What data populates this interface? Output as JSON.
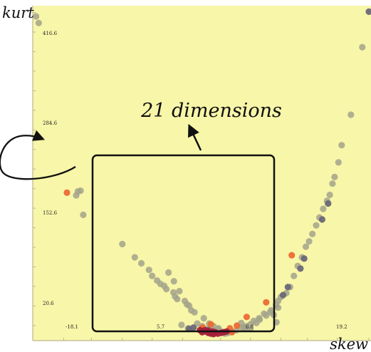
{
  "chart_data": {
    "type": "scatter",
    "title": "",
    "xlabel": "skew",
    "ylabel": "kurt",
    "x_tick_labels": [
      "-18.1",
      "5.7",
      "6.8",
      "19.2"
    ],
    "y_tick_labels": [
      "416.6",
      "284.6",
      "152.6",
      "20.6"
    ],
    "xlim": [
      -28.9,
      33.4
    ],
    "ylim": [
      0,
      445
    ],
    "grid": false,
    "legend": "none",
    "annotation": "21 dimensions",
    "colors": {
      "background": "#f8f6a8",
      "axis": "#b9b792",
      "gray": "#a3a38c",
      "dark": "#6b6878",
      "orange": "#ec6a35",
      "crimson": "#a3203a"
    },
    "series": [
      {
        "color_key": "gray",
        "points": [
          [
            -28.3,
            430.8
          ],
          [
            -27.8,
            422.0
          ],
          [
            -20.9,
            193.0
          ],
          [
            -20.6,
            198.3
          ],
          [
            -20.1,
            199.2
          ],
          [
            -19.6,
            167.1
          ],
          [
            -12.4,
            128.3
          ],
          [
            -10.1,
            110.7
          ],
          [
            -8.9,
            102.7
          ],
          [
            -7.5,
            93.9
          ],
          [
            -6.9,
            86.0
          ],
          [
            -6.0,
            79.8
          ],
          [
            -5.4,
            75.4
          ],
          [
            -4.7,
            72.8
          ],
          [
            -4.3,
            68.4
          ],
          [
            -3.0,
            64.0
          ],
          [
            -2.7,
            58.7
          ],
          [
            -2.3,
            55.2
          ],
          [
            -0.9,
            52.6
          ],
          [
            -0.5,
            48.2
          ],
          [
            -0.1,
            46.4
          ],
          [
            -3.9,
            90.4
          ],
          [
            -2.9,
            78.9
          ],
          [
            -1.9,
            65.7
          ],
          [
            0.3,
            40.2
          ],
          [
            0.9,
            37.6
          ],
          [
            2.6,
            29.7
          ],
          [
            3.6,
            22.6
          ],
          [
            4.4,
            19.1
          ],
          [
            5.2,
            14.7
          ],
          [
            5.6,
            12.9
          ],
          [
            6.1,
            11.2
          ],
          [
            6.5,
            9.4
          ],
          [
            7.1,
            10.3
          ],
          [
            7.8,
            12.0
          ],
          [
            8.6,
            13.8
          ],
          [
            9.6,
            17.3
          ],
          [
            10.0,
            18.2
          ],
          [
            10.4,
            19.1
          ],
          [
            11.2,
            21.7
          ],
          [
            11.8,
            26.1
          ],
          [
            12.8,
            29.7
          ],
          [
            13.7,
            35.8
          ],
          [
            15.0,
            40.2
          ],
          [
            15.9,
            47.3
          ],
          [
            16.3,
            52.6
          ],
          [
            16.8,
            57.9
          ],
          [
            17.8,
            63.1
          ],
          [
            18.5,
            71.1
          ],
          [
            19.2,
            86.0
          ],
          [
            19.9,
            99.2
          ],
          [
            20.7,
            110.7
          ],
          [
            21.4,
            124.8
          ],
          [
            22.0,
            131.9
          ],
          [
            22.6,
            141.6
          ],
          [
            23.3,
            153.1
          ],
          [
            23.9,
            163.6
          ],
          [
            24.6,
            175.1
          ],
          [
            25.3,
            185.7
          ],
          [
            25.8,
            193.6
          ],
          [
            26.3,
            208.6
          ],
          [
            26.7,
            217.4
          ],
          [
            27.4,
            236.8
          ],
          [
            28.0,
            259.7
          ],
          [
            29.7,
            300.1
          ],
          [
            31.8,
            389.9
          ],
          [
            12.9,
            27.9
          ],
          [
            14.1,
            33.2
          ],
          [
            5.3,
            16.4
          ],
          [
            4.4,
            13.8
          ],
          [
            3.4,
            16.4
          ],
          [
            2.3,
            19.1
          ],
          [
            1.4,
            22.6
          ],
          [
            -1.5,
            20.8
          ],
          [
            -0.3,
            16.4
          ],
          [
            9.5,
            23.4
          ],
          [
            10.3,
            16.4
          ],
          [
            11.2,
            15.6
          ],
          [
            12.3,
            23.4
          ],
          [
            16.3,
            43.7
          ],
          [
            14.8,
            37.6
          ],
          [
            16.0,
            24.3
          ],
          [
            15.5,
            34.1
          ]
        ]
      },
      {
        "color_key": "dark",
        "points": [
          [
            33.0,
            437.0
          ],
          [
            25.5,
            182.2
          ],
          [
            24.4,
            161.0
          ],
          [
            21.1,
            109.0
          ],
          [
            20.4,
            95.7
          ],
          [
            18.1,
            71.1
          ],
          [
            17.2,
            60.5
          ],
          [
            -0.1,
            15.6
          ],
          [
            0.7,
            17.3
          ],
          [
            3.4,
            13.8
          ]
        ]
      },
      {
        "color_key": "orange",
        "points": [
          [
            -22.6,
            196.6
          ],
          [
            18.8,
            113.4
          ],
          [
            14.1,
            50.8
          ],
          [
            10.5,
            31.4
          ],
          [
            8.7,
            19.9
          ],
          [
            3.9,
            21.7
          ],
          [
            2.4,
            17.3
          ],
          [
            7.4,
            16.4
          ],
          [
            7.8,
            11.2
          ]
        ]
      },
      {
        "color_key": "crimson",
        "points": [
          [
            1.9,
            13.8
          ],
          [
            2.3,
            11.2
          ],
          [
            2.8,
            13.8
          ],
          [
            3.4,
            10.3
          ],
          [
            3.9,
            9.4
          ],
          [
            4.2,
            12.0
          ],
          [
            4.7,
            11.2
          ],
          [
            5.2,
            9.4
          ],
          [
            5.8,
            10.3
          ],
          [
            6.3,
            11.2
          ],
          [
            6.8,
            12.0
          ],
          [
            4.4,
            8.6
          ],
          [
            3.4,
            12.9
          ],
          [
            2.6,
            12.0
          ]
        ]
      }
    ]
  }
}
